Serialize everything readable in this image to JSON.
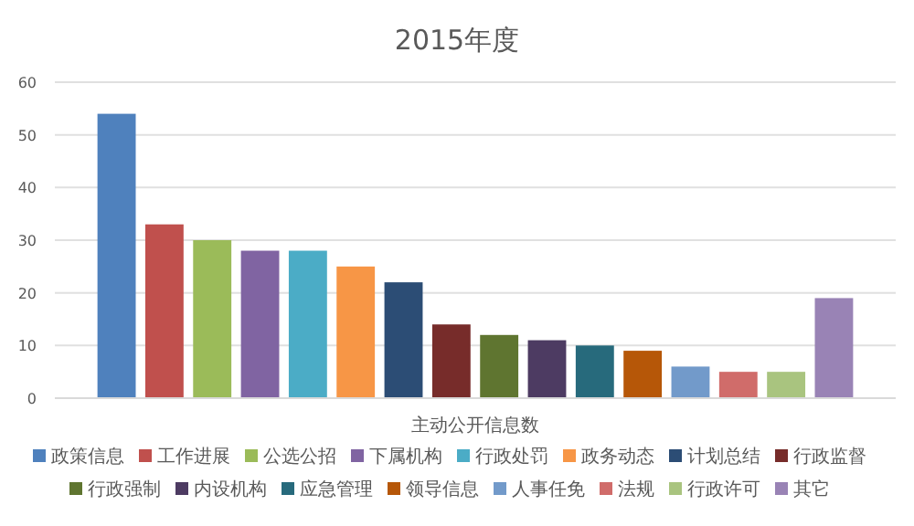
{
  "chart_data": {
    "type": "bar",
    "title": "2015年度",
    "categories": [
      "主动公开信息数"
    ],
    "ylim": [
      0,
      60
    ],
    "yticks": [
      0,
      10,
      20,
      30,
      40,
      50,
      60
    ],
    "grid": "y",
    "legend": "bottom",
    "series": [
      {
        "name": "政策信息",
        "color": "#4f81bd",
        "values": [
          54
        ]
      },
      {
        "name": "工作进展",
        "color": "#c0504d",
        "values": [
          33
        ]
      },
      {
        "name": "公选公招",
        "color": "#9bbb59",
        "values": [
          30
        ]
      },
      {
        "name": "下属机构",
        "color": "#8064a2",
        "values": [
          28
        ]
      },
      {
        "name": "行政处罚",
        "color": "#4bacc6",
        "values": [
          28
        ]
      },
      {
        "name": "政务动态",
        "color": "#f79646",
        "values": [
          25
        ]
      },
      {
        "name": "计划总结",
        "color": "#2c4d75",
        "values": [
          22
        ]
      },
      {
        "name": "行政监督",
        "color": "#772c2a",
        "values": [
          14
        ]
      },
      {
        "name": "行政强制",
        "color": "#5f7530",
        "values": [
          12
        ]
      },
      {
        "name": "内设机构",
        "color": "#4d3b62",
        "values": [
          11
        ]
      },
      {
        "name": "应急管理",
        "color": "#276a7c",
        "values": [
          10
        ]
      },
      {
        "name": "领导信息",
        "color": "#b65708",
        "values": [
          9
        ]
      },
      {
        "name": "人事任免",
        "color": "#729aca",
        "values": [
          6
        ]
      },
      {
        "name": "法规",
        "color": "#d06c6a",
        "values": [
          5
        ]
      },
      {
        "name": "行政许可",
        "color": "#a9c47f",
        "values": [
          5
        ]
      },
      {
        "name": "其它",
        "color": "#9983b5",
        "values": [
          19
        ]
      }
    ]
  }
}
